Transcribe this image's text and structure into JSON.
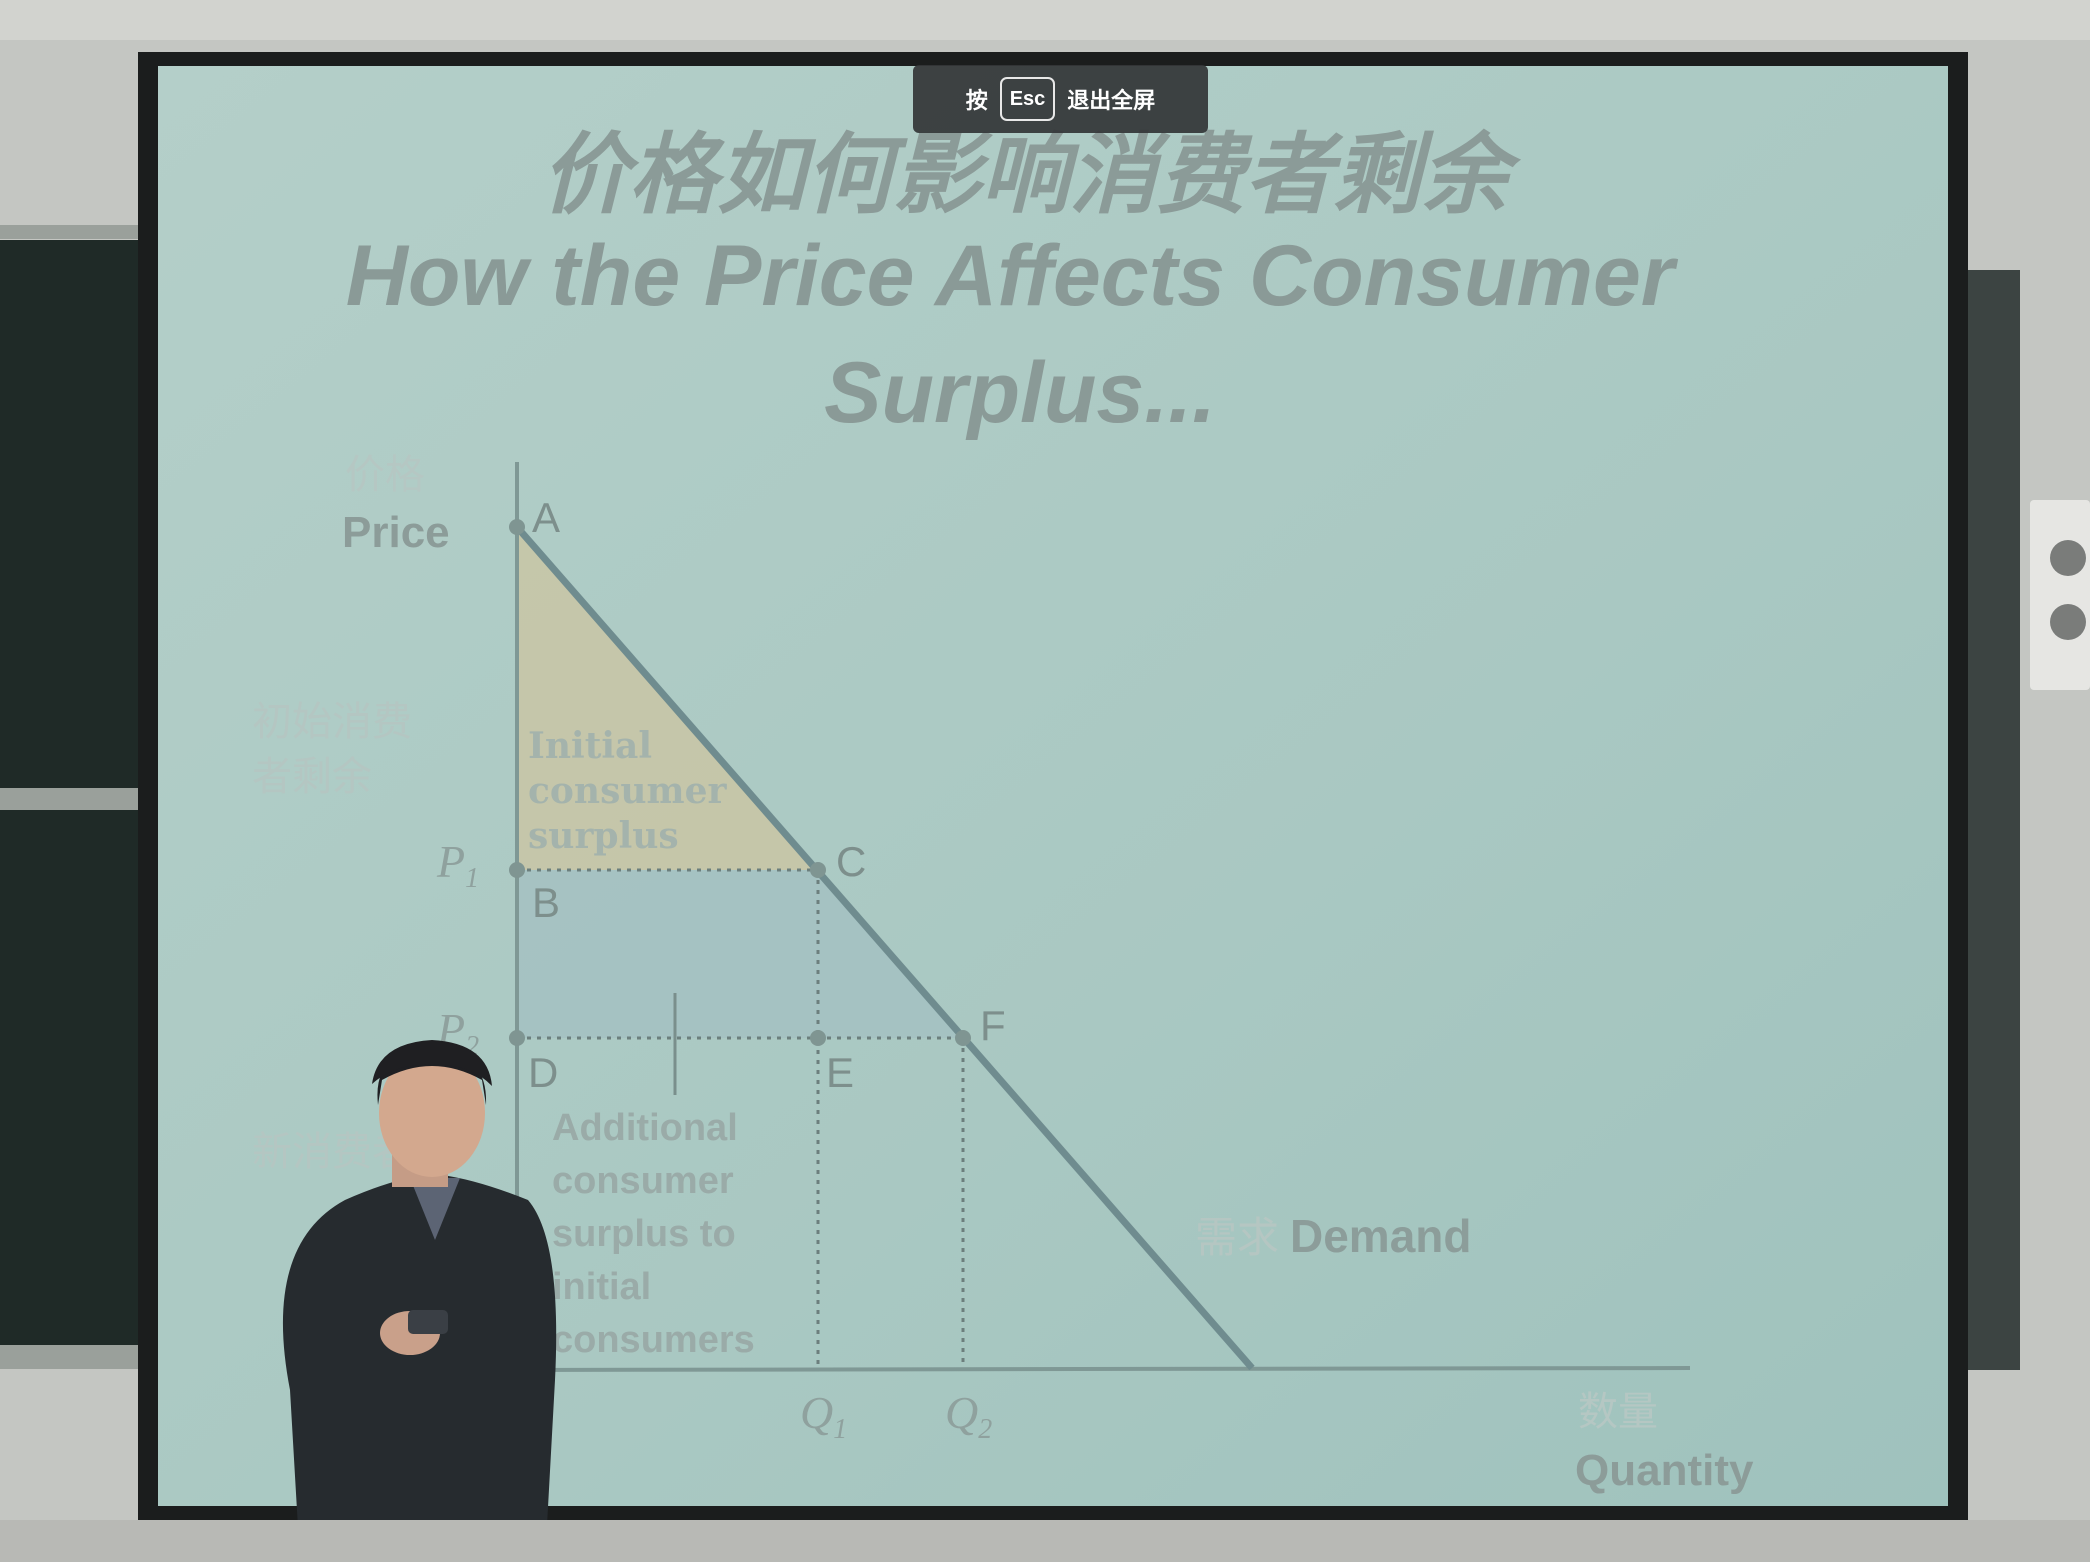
{
  "slide": {
    "title_zh": "价格如何影响消费者剩余",
    "title_en_line1": "How the Price Affects Consumer",
    "title_en_line2": "Surplus...",
    "y_axis_zh": "价格",
    "y_axis_en": "Price",
    "x_axis_zh": "数量",
    "x_axis_en": "Quantity",
    "point_labels": {
      "a": "A",
      "b": "B",
      "c": "C",
      "d": "D",
      "e": "E",
      "f": "F"
    },
    "price_p1": "P",
    "price_p1_sub": "1",
    "price_p2": "P",
    "price_p2_sub": "2",
    "qty_q1": "Q",
    "qty_q1_sub": "1",
    "qty_q2": "Q",
    "qty_q2_sub": "2",
    "initial_cs_zh_1": "初始消费",
    "initial_cs_zh_2": "者剩余",
    "initial_cs_en": [
      "Initial",
      "consumer",
      "surplus"
    ],
    "additional_cs_zh": "新消费者",
    "additional_cs_en": [
      "Additional",
      "consumer",
      "surplus to",
      "initial",
      "consumers"
    ],
    "demand_zh": "需求",
    "demand_en": "Demand"
  },
  "fullscreen_toast": {
    "before": "按",
    "key": "Esc",
    "after": "退出全屏"
  },
  "colors": {
    "screen": "#a9c8c2",
    "wall": "#c4c6c2",
    "chalkboard": "#1f2a27",
    "initial_area": "#c9c5a4",
    "additional_area": "#a3bfc2",
    "demand_line": "#6f8c8f",
    "text": "#8a9a97"
  }
}
